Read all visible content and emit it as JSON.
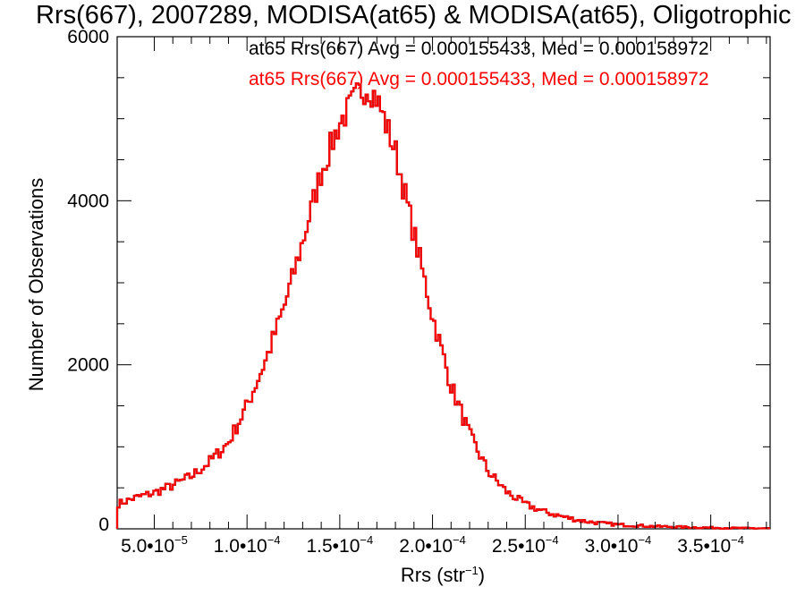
{
  "chart_data": {
    "type": "histogram",
    "title": "Rrs(667), 2007289, MODISA(at65) & MODISA(at65), Oligotrophic",
    "xlabel": "Rrs (str⁻¹)",
    "ylabel": "Number of Observations",
    "xlim": [
      3e-05,
      0.000382
    ],
    "ylim": [
      0,
      6000
    ],
    "x_ticks": [
      {
        "value": 5e-05,
        "mant": "5.0",
        "exp": "−5"
      },
      {
        "value": 0.0001,
        "mant": "1.0",
        "exp": "−4"
      },
      {
        "value": 0.00015,
        "mant": "1.5",
        "exp": "−4"
      },
      {
        "value": 0.0002,
        "mant": "2.0",
        "exp": "−4"
      },
      {
        "value": 0.00025,
        "mant": "2.5",
        "exp": "−4"
      },
      {
        "value": 0.0003,
        "mant": "3.0",
        "exp": "−4"
      },
      {
        "value": 0.00035,
        "mant": "3.5",
        "exp": "−4"
      }
    ],
    "y_ticks": [
      0,
      2000,
      4000,
      6000
    ],
    "legend": [
      {
        "text": "at65 Rrs(667) Avg = 0.000155433, Med = 0.000158972",
        "color": "#000000"
      },
      {
        "text": "at65 Rrs(667) Avg = 0.000155433, Med = 0.000158972",
        "color": "#ff0000"
      }
    ],
    "series_colors": [
      "#000000",
      "#ff0000"
    ],
    "bin_width": 1.3e-06,
    "curve_points": [
      [
        3e-05,
        300
      ],
      [
        4e-05,
        380
      ],
      [
        5e-05,
        440
      ],
      [
        6e-05,
        530
      ],
      [
        7e-05,
        640
      ],
      [
        8e-05,
        820
      ],
      [
        9e-05,
        1050
      ],
      [
        0.0001,
        1500
      ],
      [
        0.00011,
        2050
      ],
      [
        0.00012,
        2700
      ],
      [
        0.00013,
        3500
      ],
      [
        0.00014,
        4350
      ],
      [
        0.00015,
        4950
      ],
      [
        0.00016,
        5300
      ],
      [
        0.000165,
        5400
      ],
      [
        0.00017,
        5250
      ],
      [
        0.00018,
        4600
      ],
      [
        0.00019,
        3600
      ],
      [
        0.0002,
        2600
      ],
      [
        0.00021,
        1750
      ],
      [
        0.00022,
        1150
      ],
      [
        0.00023,
        700
      ],
      [
        0.00024,
        450
      ],
      [
        0.00025,
        300
      ],
      [
        0.00026,
        210
      ],
      [
        0.00027,
        150
      ],
      [
        0.00028,
        100
      ],
      [
        0.00029,
        70
      ],
      [
        0.0003,
        50
      ],
      [
        0.00032,
        30
      ],
      [
        0.00034,
        18
      ],
      [
        0.00036,
        10
      ],
      [
        0.000382,
        5
      ]
    ]
  }
}
